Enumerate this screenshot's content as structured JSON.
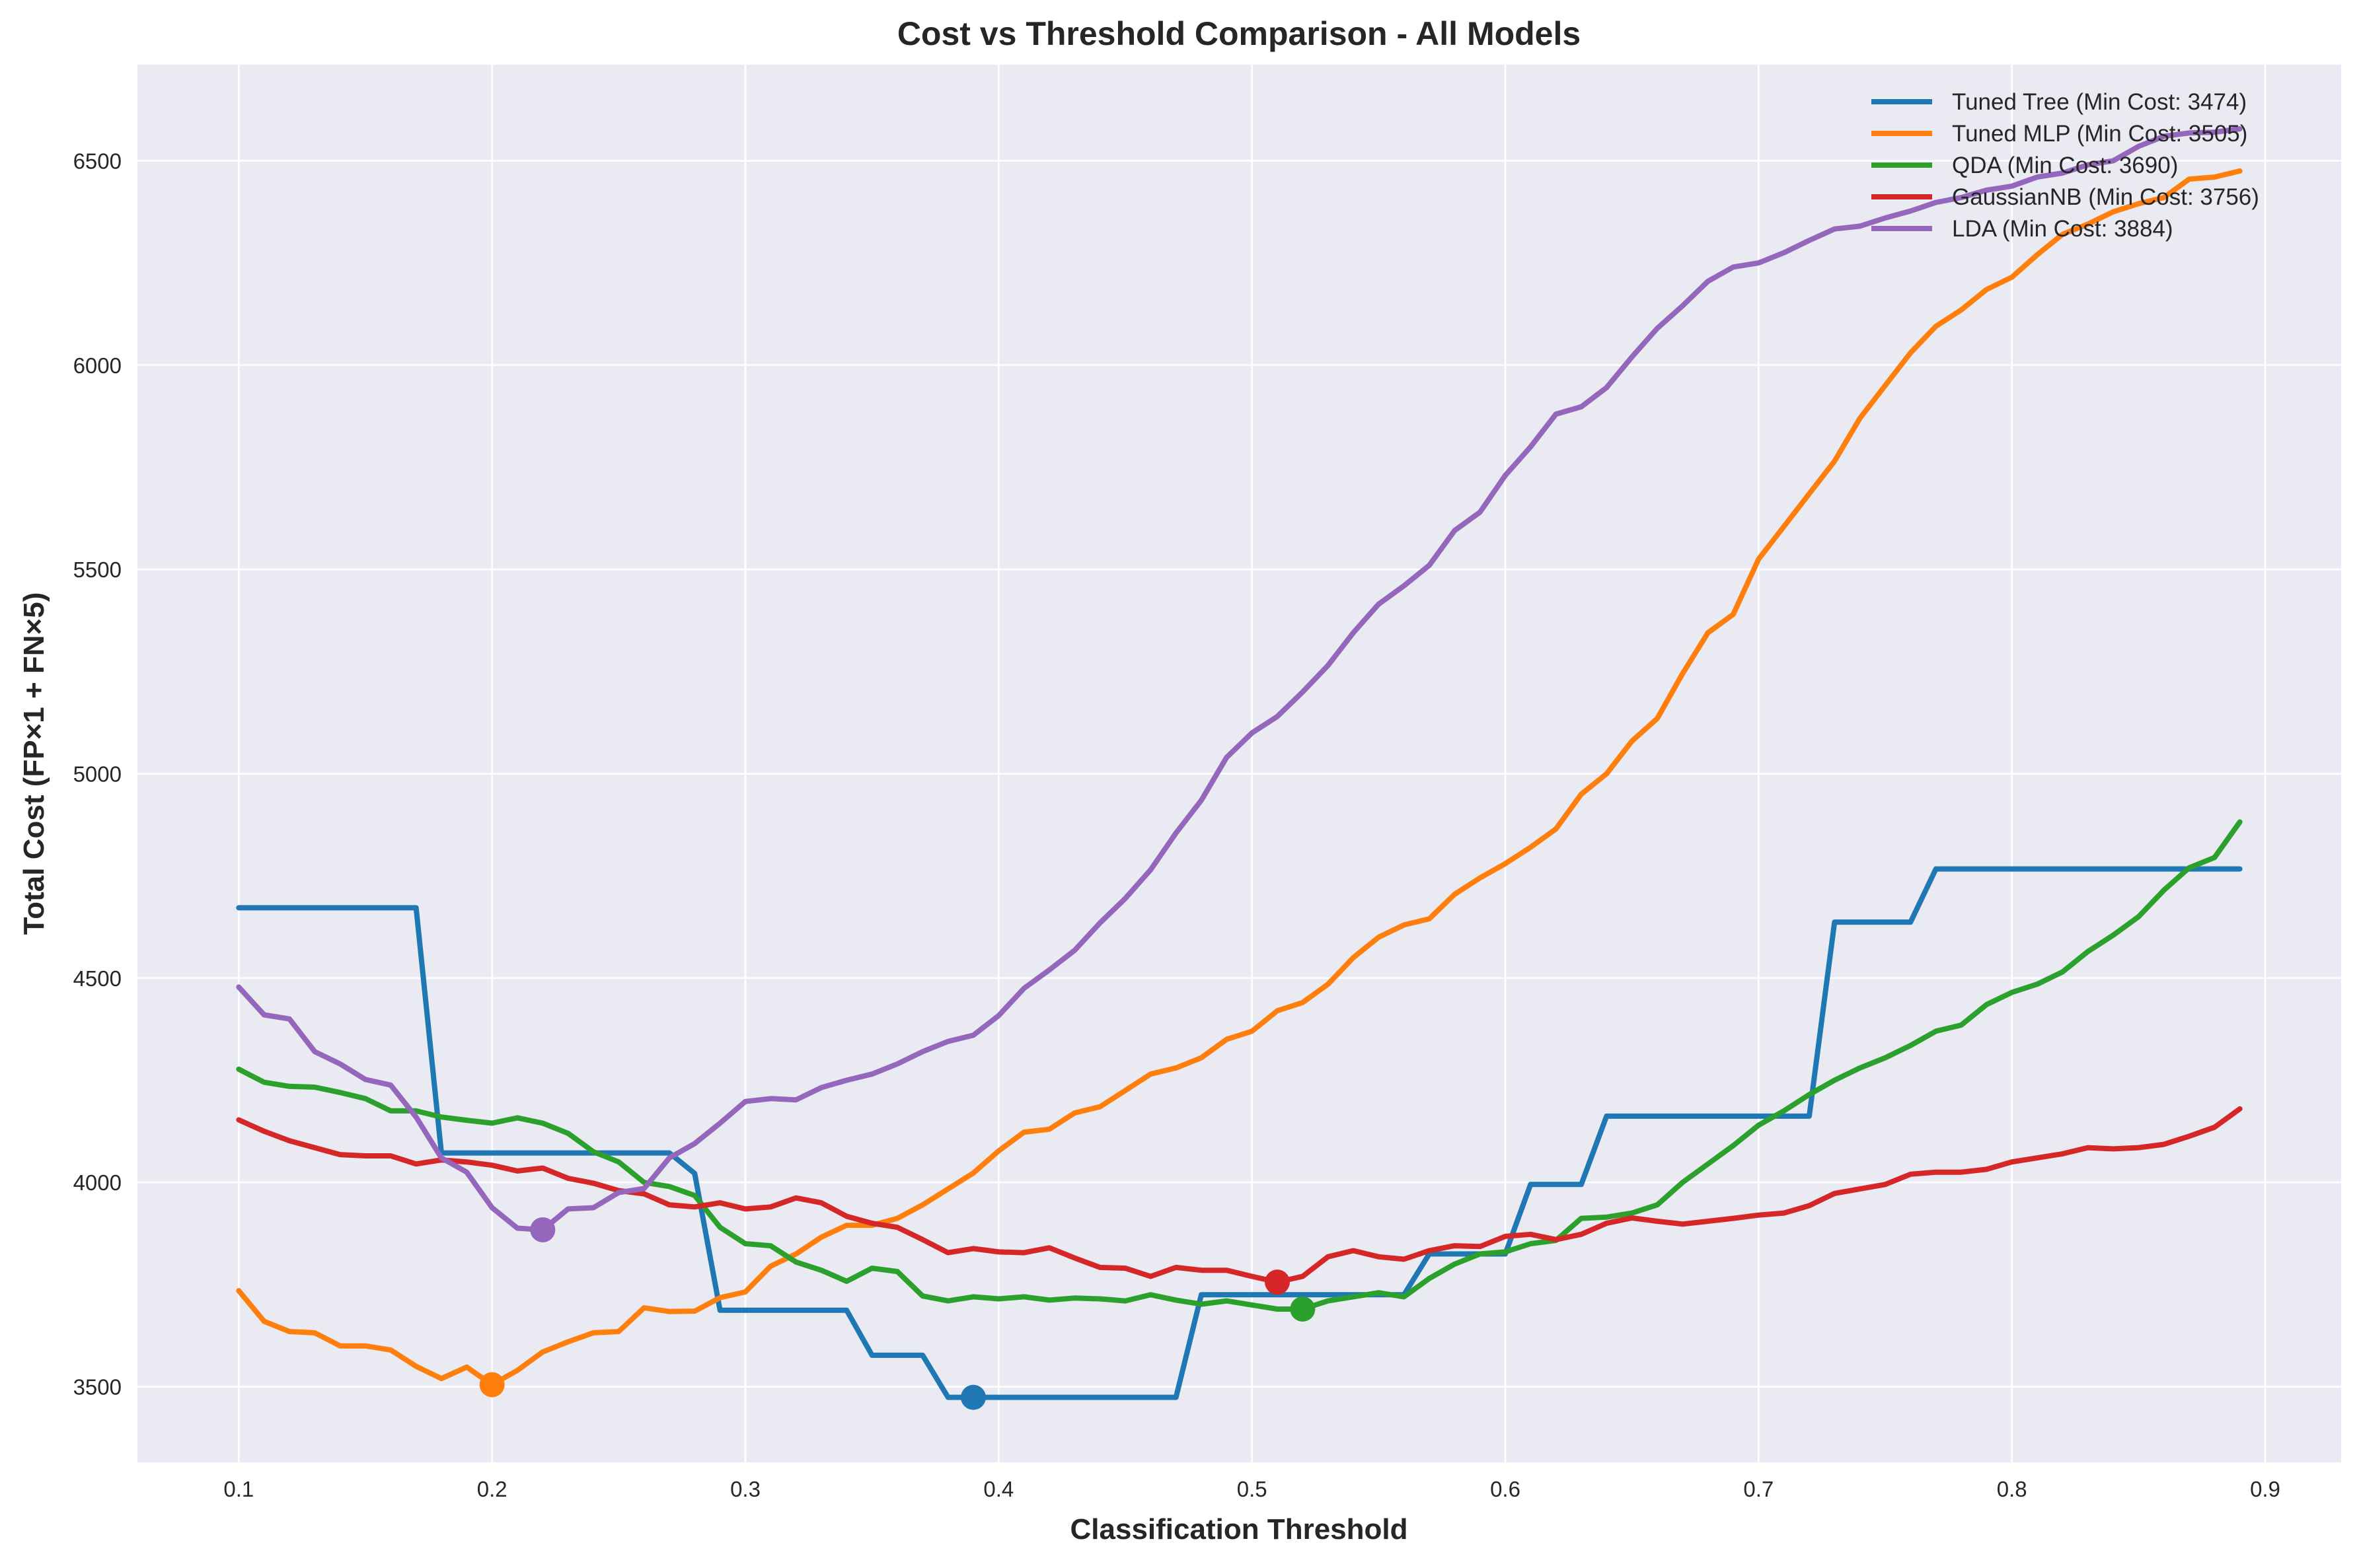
{
  "chart_data": {
    "type": "line",
    "title": "Cost vs Threshold Comparison - All Models",
    "xlabel": "Classification Threshold",
    "ylabel": "Total Cost (FP×1 + FN×5)",
    "xlim": [
      0.06,
      0.93
    ],
    "ylim": [
      3315,
      6735
    ],
    "xticks": [
      0.1,
      0.2,
      0.3,
      0.4,
      0.5,
      0.6,
      0.7,
      0.8,
      0.9
    ],
    "xtick_labels": [
      "0.1",
      "0.2",
      "0.3",
      "0.4",
      "0.5",
      "0.6",
      "0.7",
      "0.8",
      "0.9"
    ],
    "yticks": [
      3500,
      4000,
      4500,
      5000,
      5500,
      6000,
      6500
    ],
    "ytick_labels": [
      "3500",
      "4000",
      "4500",
      "5000",
      "5500",
      "6000",
      "6500"
    ],
    "grid": true,
    "legend_position": "top-right",
    "x": [
      0.1,
      0.11,
      0.12,
      0.13,
      0.14,
      0.15,
      0.16,
      0.17,
      0.18,
      0.19,
      0.2,
      0.21,
      0.22,
      0.23,
      0.24,
      0.25,
      0.26,
      0.27,
      0.28,
      0.29,
      0.3,
      0.31,
      0.32,
      0.33,
      0.34,
      0.35,
      0.36,
      0.37,
      0.38,
      0.39,
      0.4,
      0.41,
      0.42,
      0.43,
      0.44,
      0.45,
      0.46,
      0.47,
      0.48,
      0.49,
      0.5,
      0.51,
      0.52,
      0.53,
      0.54,
      0.55,
      0.56,
      0.57,
      0.58,
      0.59,
      0.6,
      0.61,
      0.62,
      0.63,
      0.64,
      0.65,
      0.66,
      0.67,
      0.68,
      0.69,
      0.7,
      0.71,
      0.72,
      0.73,
      0.74,
      0.75,
      0.76,
      0.77,
      0.78,
      0.79,
      0.8,
      0.81,
      0.82,
      0.83,
      0.84,
      0.85,
      0.86,
      0.87,
      0.88,
      0.89
    ],
    "series": [
      {
        "name": "Tuned Tree (Min Cost: 3474)",
        "color": "#1f77b4",
        "min_point": [
          0.39,
          3474
        ],
        "values": [
          4672,
          4672,
          4672,
          4672,
          4672,
          4672,
          4672,
          4672,
          4072,
          4072,
          4072,
          4072,
          4072,
          4072,
          4072,
          4072,
          4072,
          4072,
          4022,
          3687,
          3687,
          3687,
          3687,
          3687,
          3687,
          3577,
          3577,
          3577,
          3474,
          3474,
          3474,
          3474,
          3474,
          3474,
          3474,
          3474,
          3474,
          3474,
          3725,
          3725,
          3725,
          3725,
          3725,
          3725,
          3725,
          3725,
          3725,
          3825,
          3825,
          3825,
          3825,
          3995,
          3995,
          3995,
          4162,
          4162,
          4162,
          4162,
          4162,
          4162,
          4162,
          4162,
          4162,
          4637,
          4637,
          4637,
          4637,
          4767,
          4767,
          4767,
          4767,
          4767,
          4767,
          4767,
          4767,
          4767,
          4767,
          4767,
          4767,
          4767
        ]
      },
      {
        "name": "Tuned MLP (Min Cost: 3505)",
        "color": "#ff7f0e",
        "min_point": [
          0.2,
          3505
        ],
        "values": [
          3735,
          3660,
          3635,
          3632,
          3600,
          3600,
          3590,
          3550,
          3520,
          3548,
          3505,
          3540,
          3585,
          3610,
          3632,
          3635,
          3693,
          3684,
          3685,
          3718,
          3732,
          3795,
          3825,
          3866,
          3895,
          3895,
          3912,
          3945,
          3984,
          4023,
          4077,
          4123,
          4130,
          4170,
          4185,
          4225,
          4265,
          4280,
          4305,
          4350,
          4370,
          4420,
          4440,
          4485,
          4550,
          4600,
          4630,
          4645,
          4705,
          4745,
          4780,
          4820,
          4865,
          4950,
          5000,
          5080,
          5135,
          5245,
          5345,
          5390,
          5525,
          5605,
          5685,
          5765,
          5870,
          5950,
          6030,
          6095,
          6135,
          6185,
          6215,
          6270,
          6320,
          6345,
          6375,
          6395,
          6410,
          6455,
          6460,
          6475
        ]
      },
      {
        "name": "QDA (Min Cost: 3690)",
        "color": "#2ca02c",
        "min_point": [
          0.52,
          3690
        ],
        "values": [
          4277,
          4245,
          4235,
          4233,
          4220,
          4205,
          4175,
          4175,
          4160,
          4152,
          4145,
          4158,
          4145,
          4120,
          4075,
          4050,
          4000,
          3990,
          3968,
          3890,
          3850,
          3845,
          3805,
          3785,
          3758,
          3790,
          3782,
          3722,
          3710,
          3720,
          3715,
          3720,
          3712,
          3717,
          3715,
          3710,
          3725,
          3712,
          3702,
          3710,
          3700,
          3690,
          3690,
          3710,
          3720,
          3730,
          3720,
          3765,
          3800,
          3825,
          3830,
          3850,
          3858,
          3912,
          3915,
          3925,
          3945,
          4000,
          4045,
          4090,
          4140,
          4175,
          4215,
          4250,
          4280,
          4305,
          4335,
          4370,
          4385,
          4435,
          4465,
          4485,
          4515,
          4565,
          4605,
          4650,
          4715,
          4770,
          4795,
          4882
        ]
      },
      {
        "name": "GaussianNB (Min Cost: 3756)",
        "color": "#d62728",
        "min_point": [
          0.51,
          3756
        ],
        "values": [
          4153,
          4125,
          4102,
          4085,
          4068,
          4065,
          4065,
          4045,
          4055,
          4050,
          4042,
          4028,
          4035,
          4010,
          3998,
          3980,
          3972,
          3945,
          3940,
          3950,
          3935,
          3940,
          3962,
          3950,
          3917,
          3900,
          3890,
          3860,
          3828,
          3838,
          3830,
          3828,
          3840,
          3815,
          3792,
          3790,
          3770,
          3792,
          3785,
          3785,
          3770,
          3756,
          3770,
          3818,
          3833,
          3818,
          3812,
          3833,
          3845,
          3843,
          3868,
          3873,
          3860,
          3873,
          3900,
          3913,
          3905,
          3898,
          3905,
          3912,
          3920,
          3925,
          3943,
          3973,
          3984,
          3995,
          4020,
          4025,
          4025,
          4032,
          4050,
          4060,
          4070,
          4085,
          4082,
          4085,
          4093,
          4113,
          4135,
          4180
        ]
      },
      {
        "name": "LDA (Min Cost: 3884)",
        "color": "#9467bd",
        "min_point": [
          0.22,
          3884
        ],
        "values": [
          4478,
          4410,
          4400,
          4320,
          4290,
          4252,
          4238,
          4160,
          4060,
          4025,
          3938,
          3888,
          3884,
          3935,
          3938,
          3975,
          3985,
          4060,
          4095,
          4145,
          4198,
          4205,
          4202,
          4232,
          4250,
          4265,
          4290,
          4320,
          4345,
          4360,
          4408,
          4475,
          4520,
          4568,
          4635,
          4695,
          4765,
          4855,
          4935,
          5040,
          5100,
          5140,
          5200,
          5265,
          5345,
          5415,
          5460,
          5510,
          5595,
          5640,
          5730,
          5800,
          5880,
          5898,
          5945,
          6020,
          6090,
          6145,
          6205,
          6240,
          6250,
          6275,
          6305,
          6333,
          6340,
          6360,
          6377,
          6398,
          6410,
          6428,
          6438,
          6460,
          6470,
          6490,
          6500,
          6535,
          6560,
          6568,
          6570,
          6578
        ]
      }
    ]
  }
}
